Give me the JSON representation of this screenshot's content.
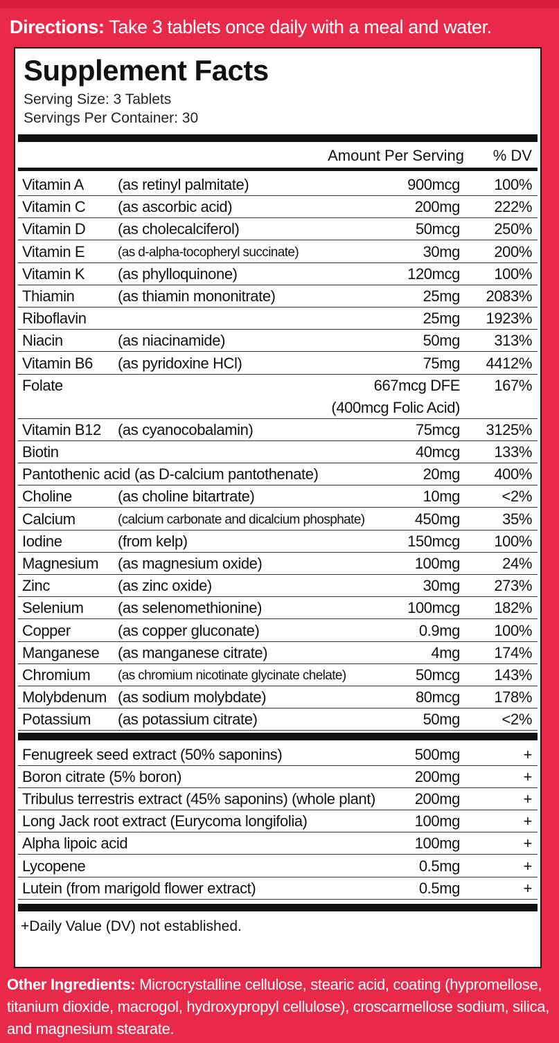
{
  "directions": {
    "label": "Directions:",
    "text": "Take 3 tablets once daily with a meal and water."
  },
  "facts": {
    "title": "Supplement Facts",
    "serving_size": "Serving Size: 3 Tablets",
    "servings_per_container": "Servings Per Container: 30",
    "col_amount": "Amount Per Serving",
    "col_dv": "% DV",
    "nutrients": [
      {
        "name": "Vitamin A",
        "source": "(as retinyl palmitate)",
        "amount": "900mcg",
        "dv": "100%"
      },
      {
        "name": "Vitamin C",
        "source": "(as ascorbic acid)",
        "amount": "200mg",
        "dv": "222%"
      },
      {
        "name": "Vitamin D",
        "source": "(as cholecalciferol)",
        "amount": "50mcg",
        "dv": "250%"
      },
      {
        "name": "Vitamin E",
        "source": "(as d-alpha-tocopheryl succinate)",
        "amount": "30mg",
        "dv": "200%"
      },
      {
        "name": "Vitamin K",
        "source": "(as phylloquinone)",
        "amount": "120mcg",
        "dv": "100%"
      },
      {
        "name": "Thiamin",
        "source": "(as thiamin mononitrate)",
        "amount": "25mg",
        "dv": "2083%"
      },
      {
        "name": "Riboflavin",
        "source": "",
        "amount": "25mg",
        "dv": "1923%"
      },
      {
        "name": "Niacin",
        "source": "(as niacinamide)",
        "amount": "50mg",
        "dv": "313%"
      },
      {
        "name": "Vitamin B6",
        "source": "(as pyridoxine HCl)",
        "amount": "75mg",
        "dv": "4412%"
      },
      {
        "name": "Folate",
        "source": "",
        "amount": "667mcg DFE",
        "amount2": "(400mcg Folic Acid)",
        "dv": "167%"
      },
      {
        "name": "Vitamin B12",
        "source": "(as cyanocobalamin)",
        "amount": "75mcg",
        "dv": "3125%"
      },
      {
        "name": "Biotin",
        "source": "",
        "amount": "40mcg",
        "dv": "133%"
      },
      {
        "name": "Pantothenic acid (as D-calcium pantothenate)",
        "source": "",
        "amount": "20mg",
        "dv": "400%"
      },
      {
        "name": "Choline",
        "source": "(as choline bitartrate)",
        "amount": "10mg",
        "dv": "<2%"
      },
      {
        "name": "Calcium",
        "source": "(calcium carbonate and dicalcium phosphate)",
        "amount": "450mg",
        "dv": "35%"
      },
      {
        "name": "Iodine",
        "source": "(from kelp)",
        "amount": "150mcg",
        "dv": "100%"
      },
      {
        "name": "Magnesium",
        "source": "(as magnesium oxide)",
        "amount": "100mg",
        "dv": "24%"
      },
      {
        "name": "Zinc",
        "source": "(as zinc oxide)",
        "amount": "30mg",
        "dv": "273%"
      },
      {
        "name": "Selenium",
        "source": "(as selenomethionine)",
        "amount": "100mcg",
        "dv": "182%"
      },
      {
        "name": "Copper",
        "source": "(as copper gluconate)",
        "amount": "0.9mg",
        "dv": "100%"
      },
      {
        "name": "Manganese",
        "source": "(as manganese citrate)",
        "amount": "4mg",
        "dv": "174%"
      },
      {
        "name": "Chromium",
        "source": "(as chromium nicotinate glycinate chelate)",
        "amount": "50mcg",
        "dv": "143%"
      },
      {
        "name": "Molybdenum",
        "source": "(as sodium molybdate)",
        "amount": "80mcg",
        "dv": "178%"
      },
      {
        "name": "Potassium",
        "source": "(as potassium citrate)",
        "amount": "50mg",
        "dv": "<2%"
      }
    ],
    "extracts": [
      {
        "name": "Fenugreek seed extract (50% saponins)",
        "amount": "500mg",
        "dv": "+"
      },
      {
        "name": "Boron citrate (5% boron)",
        "amount": "200mg",
        "dv": "+"
      },
      {
        "name": "Tribulus terrestris extract (45% saponins) (whole plant)",
        "amount": "200mg",
        "dv": "+"
      },
      {
        "name": "Long Jack root extract (Eurycoma longifolia)",
        "amount": "100mg",
        "dv": "+"
      },
      {
        "name": "Alpha lipoic acid",
        "amount": "100mg",
        "dv": "+"
      },
      {
        "name": "Lycopene",
        "amount": "0.5mg",
        "dv": "+"
      },
      {
        "name": "Lutein (from marigold flower extract)",
        "amount": "0.5mg",
        "dv": "+"
      }
    ],
    "footnote": "+Daily Value (DV) not established."
  },
  "other_ingredients": {
    "label": "Other Ingredients:",
    "text": "Microcrystalline cellulose, stearic acid, coating (hypromellose, titanium dioxide, macrogol, hydroxypropyl cellulose), croscarmellose sodium, silica, and magnesium stearate."
  },
  "colors": {
    "background": "#e8294a",
    "panel": "#ffffff",
    "text": "#111111"
  }
}
